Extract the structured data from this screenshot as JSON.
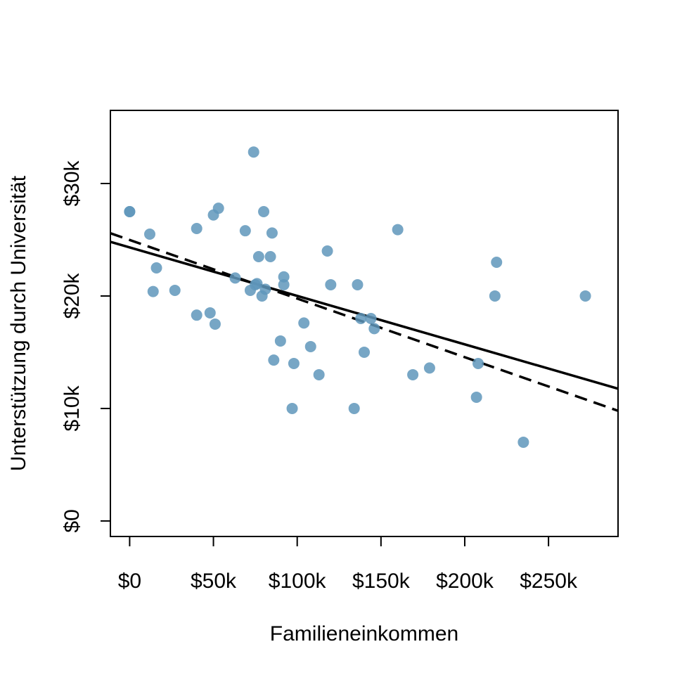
{
  "chart_data": {
    "type": "scatter",
    "xlabel": "Familieneinkommen",
    "ylabel": "Unterstützung durch Universität",
    "xlim": [
      -11.5,
      291.5
    ],
    "ylim": [
      -1.38,
      36.5
    ],
    "x_ticks": [
      0,
      50,
      100,
      150,
      200,
      250
    ],
    "x_tick_labels": [
      "$0",
      "$50k",
      "$100k",
      "$150k",
      "$200k",
      "$250k"
    ],
    "y_ticks": [
      0,
      10,
      20,
      30
    ],
    "y_tick_labels": [
      "$0",
      "$10k",
      "$20k",
      "$30k"
    ],
    "units": "thousand dollars",
    "grid": false,
    "point_color": "#5f97bb",
    "points": [
      [
        0,
        27.5
      ],
      [
        0,
        27.5
      ],
      [
        12,
        25.5
      ],
      [
        14,
        20.4
      ],
      [
        16,
        22.5
      ],
      [
        27,
        20.5
      ],
      [
        40,
        26.0
      ],
      [
        40,
        18.3
      ],
      [
        48,
        18.5
      ],
      [
        50,
        27.2
      ],
      [
        51,
        17.5
      ],
      [
        53,
        27.8
      ],
      [
        63,
        21.6
      ],
      [
        69,
        25.8
      ],
      [
        72,
        20.5
      ],
      [
        74,
        32.8
      ],
      [
        75,
        21.0
      ],
      [
        76,
        21.1
      ],
      [
        77,
        23.5
      ],
      [
        79,
        20.0
      ],
      [
        80,
        27.5
      ],
      [
        81,
        20.6
      ],
      [
        84,
        23.5
      ],
      [
        85,
        25.6
      ],
      [
        86,
        14.3
      ],
      [
        90,
        16.0
      ],
      [
        92,
        21.7
      ],
      [
        92,
        21.0
      ],
      [
        97,
        10.0
      ],
      [
        98,
        14.0
      ],
      [
        104,
        17.6
      ],
      [
        108,
        15.5
      ],
      [
        113,
        13.0
      ],
      [
        118,
        24.0
      ],
      [
        120,
        21.0
      ],
      [
        134,
        10.0
      ],
      [
        136,
        21.0
      ],
      [
        138,
        18.0
      ],
      [
        140,
        15.0
      ],
      [
        144,
        18.0
      ],
      [
        146,
        17.1
      ],
      [
        160,
        25.9
      ],
      [
        169,
        13.0
      ],
      [
        179,
        13.6
      ],
      [
        207,
        11.0
      ],
      [
        208,
        14.0
      ],
      [
        218,
        20.0
      ],
      [
        219,
        23.0
      ],
      [
        235,
        7.0
      ],
      [
        272,
        20.0
      ]
    ],
    "lines": [
      {
        "style": "solid",
        "intercept": 24.32,
        "slope": -0.0431
      },
      {
        "style": "dashed",
        "intercept": 24.98,
        "slope": -0.0521
      }
    ]
  }
}
